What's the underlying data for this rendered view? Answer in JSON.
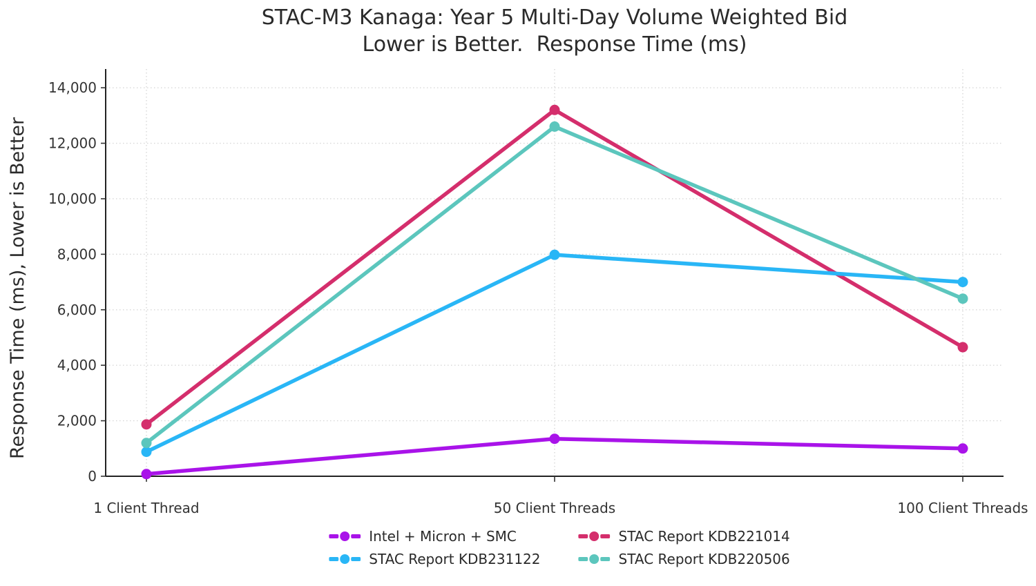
{
  "chart_data": {
    "type": "line",
    "title_line1": "STAC-M3 Kanaga: Year 5 Multi-Day Volume Weighted Bid",
    "title_line2": "Lower is Better.  Response Time (ms)",
    "ylabel": "Response Time (ms), Lower is Better",
    "xlabel": "",
    "categories": [
      "1 Client Thread",
      "50 Client Threads",
      "100 Client Threads"
    ],
    "series": [
      {
        "name": "Intel + Micron + SMC",
        "color": "#A913E9",
        "values": [
          80,
          1350,
          1000
        ]
      },
      {
        "name": "STAC Report KDB221014",
        "color": "#D42E6C",
        "values": [
          1870,
          13200,
          4650
        ]
      },
      {
        "name": "STAC Report KDB231122",
        "color": "#29B6F6",
        "values": [
          880,
          7980,
          7000
        ]
      },
      {
        "name": "STAC Report KDB220506",
        "color": "#5CC6BD",
        "values": [
          1200,
          12600,
          6400
        ]
      }
    ],
    "yticks": {
      "values": [
        0,
        2000,
        4000,
        6000,
        8000,
        10000,
        12000,
        14000
      ],
      "labels": [
        "0",
        "2,000",
        "4,000",
        "6,000",
        "8,000",
        "10,000",
        "12,000",
        "14,000"
      ]
    },
    "ylim": [
      0,
      14675
    ],
    "grid": true,
    "legend_position": "bottom",
    "colors": {
      "axis": "#222222",
      "grid": "#d7d7d7",
      "tick_text": "#333333",
      "title_text": "#2a2a2a"
    }
  }
}
